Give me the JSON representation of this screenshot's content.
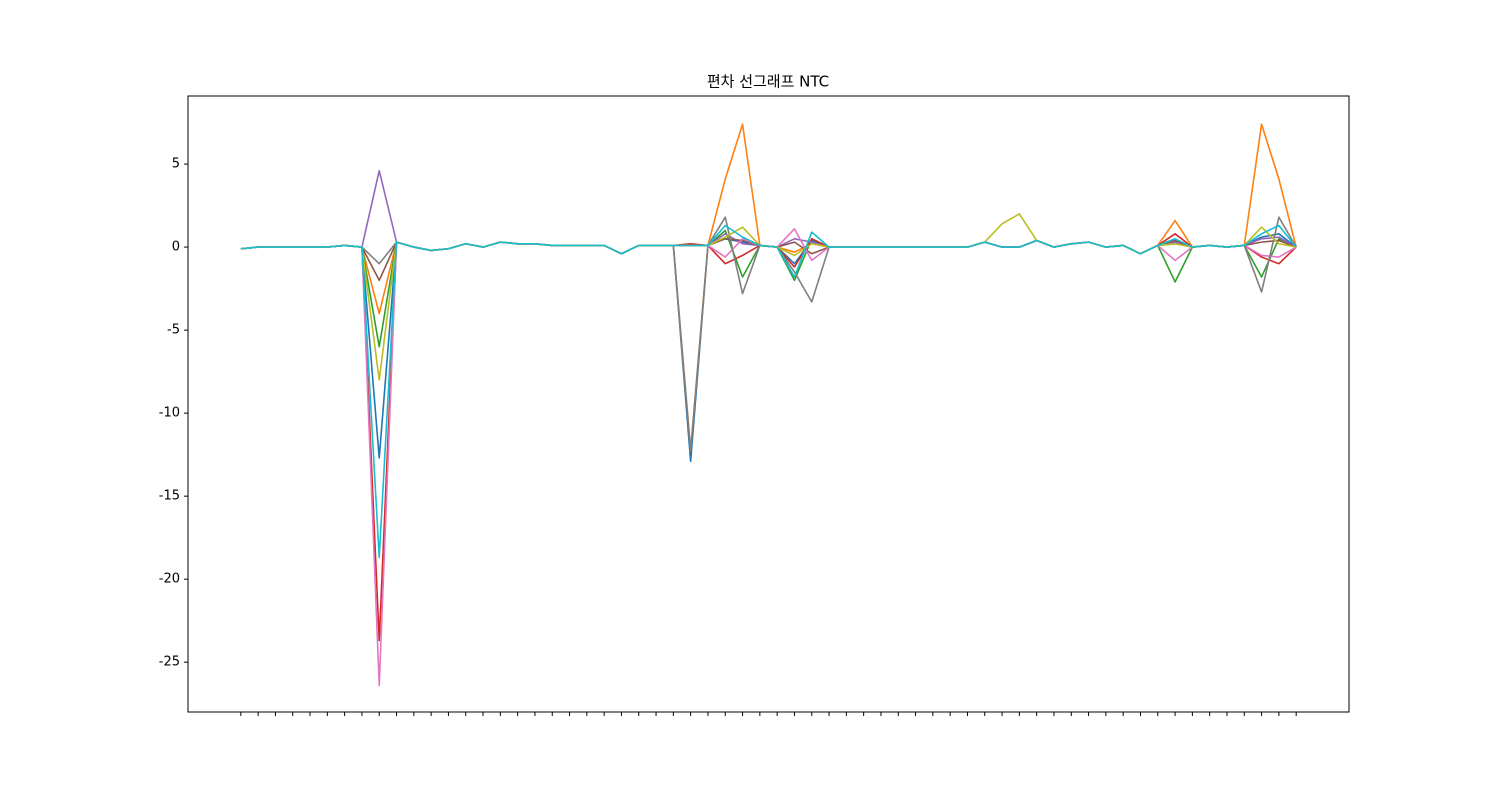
{
  "chart_data": {
    "type": "line",
    "title": "편차 선그래프 NTC",
    "categories": [
      null,
      null,
      null,
      null,
      null,
      null,
      null,
      null,
      null,
      null,
      null,
      null,
      null,
      null,
      null,
      null,
      null,
      null,
      null,
      null,
      null,
      null,
      null,
      null,
      null,
      null,
      null,
      null,
      null,
      null,
      null,
      null,
      null,
      null,
      null,
      null,
      null,
      null,
      null,
      null,
      null,
      null,
      null,
      null,
      null,
      null,
      null,
      null,
      null,
      null,
      null,
      null,
      null,
      null,
      null,
      null,
      null,
      null,
      null,
      null,
      null,
      null
    ],
    "ylim": [
      -28.0,
      9.1
    ],
    "yticks": [
      5,
      0,
      -5,
      -10,
      -15,
      -20,
      -25
    ],
    "series": [
      {
        "color": "#1f77b4",
        "values": [
          -0.1,
          0,
          0,
          0,
          0,
          0,
          0.1,
          0,
          -12.7,
          0.3,
          0,
          -0.2,
          -0.1,
          0.2,
          0,
          0.3,
          0.2,
          0.2,
          0.1,
          0.1,
          0.1,
          0.1,
          -0.4,
          0.1,
          0.1,
          0.1,
          -12.9,
          0.1,
          0.5,
          0.3,
          0.1,
          0,
          -1.0,
          0.4,
          0,
          0,
          0,
          0,
          0,
          0,
          0,
          0,
          0,
          0.3,
          0,
          0,
          0.4,
          0,
          0.2,
          0.3,
          0,
          0.1,
          -0.4,
          0.1,
          0.3,
          0,
          0.1,
          0,
          0.1,
          0.6,
          0.8,
          0
        ]
      },
      {
        "color": "#ff7f0e",
        "values": [
          -0.1,
          0,
          0,
          0,
          0,
          0,
          0.1,
          0,
          -4,
          0.3,
          0,
          -0.2,
          -0.1,
          0.2,
          0,
          0.3,
          0.2,
          0.2,
          0.1,
          0.1,
          0.1,
          0.1,
          -0.4,
          0.1,
          0.1,
          0.1,
          -12.2,
          0.1,
          4.1,
          7.4,
          0.1,
          0,
          -0.3,
          0.2,
          0,
          0,
          0,
          0,
          0,
          0,
          0,
          0,
          0,
          0.3,
          0,
          0,
          0.4,
          0,
          0.2,
          0.3,
          0,
          0.1,
          -0.4,
          0.1,
          1.6,
          0,
          0.1,
          0,
          0.1,
          7.4,
          4.1,
          0
        ]
      },
      {
        "color": "#2ca02c",
        "values": [
          -0.1,
          0,
          0,
          0,
          0,
          0,
          0.1,
          0,
          -6,
          0.3,
          0,
          -0.2,
          -0.1,
          0.2,
          0,
          0.3,
          0.2,
          0.2,
          0.1,
          0.1,
          0.1,
          0.1,
          -0.4,
          0.1,
          0.1,
          0.1,
          0.1,
          0.1,
          1.0,
          -1.8,
          0.1,
          0,
          -2.0,
          0.5,
          0,
          0,
          0,
          0,
          0,
          0,
          0,
          0,
          0,
          0.3,
          0,
          0,
          0.4,
          0,
          0.2,
          0.3,
          0,
          0.1,
          -0.4,
          0.1,
          -2.1,
          0,
          0.1,
          0,
          0.1,
          -1.8,
          0.5,
          0
        ]
      },
      {
        "color": "#d62728",
        "values": [
          -0.1,
          0,
          0,
          0,
          0,
          0,
          0.1,
          0,
          -23.7,
          0.3,
          0,
          -0.2,
          -0.1,
          0.2,
          0,
          0.3,
          0.2,
          0.2,
          0.1,
          0.1,
          0.1,
          0.1,
          -0.4,
          0.1,
          0.1,
          0.1,
          0.2,
          0.1,
          -1.0,
          -0.5,
          0.1,
          0,
          -1.2,
          0.5,
          0,
          0,
          0,
          0,
          0,
          0,
          0,
          0,
          0,
          0.3,
          0,
          0,
          0.4,
          0,
          0.2,
          0.3,
          0,
          0.1,
          -0.4,
          0.1,
          0.8,
          0,
          0.1,
          0,
          0.1,
          -0.6,
          -1.0,
          0
        ]
      },
      {
        "color": "#9467bd",
        "values": [
          -0.1,
          0,
          0,
          0,
          0,
          0,
          0.1,
          0,
          4.6,
          0.3,
          0,
          -0.2,
          -0.1,
          0.2,
          0,
          0.3,
          0.2,
          0.2,
          0.1,
          0.1,
          0.1,
          0.1,
          -0.4,
          0.1,
          0.1,
          0.1,
          0.1,
          0.1,
          0.8,
          0.2,
          0.1,
          0,
          0.5,
          0.3,
          0,
          0,
          0,
          0,
          0,
          0,
          0,
          0,
          0,
          0.3,
          0,
          0,
          0.4,
          0,
          0.2,
          0.3,
          0,
          0.1,
          -0.4,
          0.1,
          0.3,
          0,
          0.1,
          0,
          0.1,
          0.5,
          0.6,
          0
        ]
      },
      {
        "color": "#8c564b",
        "values": [
          -0.1,
          0,
          0,
          0,
          0,
          0,
          0.1,
          0,
          -2,
          0.3,
          0,
          -0.2,
          -0.1,
          0.2,
          0,
          0.3,
          0.2,
          0.2,
          0.1,
          0.1,
          0.1,
          0.1,
          -0.4,
          0.1,
          0.1,
          0.1,
          0.1,
          0.1,
          0.5,
          0.4,
          0.1,
          0,
          0.3,
          -0.4,
          0,
          0,
          0,
          0,
          0,
          0,
          0,
          0,
          0,
          0.3,
          0,
          0,
          0.4,
          0,
          0.2,
          0.3,
          0,
          0.1,
          -0.4,
          0.1,
          0.4,
          0,
          0.1,
          0,
          0.1,
          0.3,
          0.4,
          0
        ]
      },
      {
        "color": "#e377c2",
        "values": [
          -0.1,
          0,
          0,
          0,
          0,
          0,
          0.1,
          0,
          -26.4,
          0.3,
          0,
          -0.2,
          -0.1,
          0.2,
          0,
          0.3,
          0.2,
          0.2,
          0.1,
          0.1,
          0.1,
          0.1,
          -0.4,
          0.1,
          0.1,
          0.1,
          0.1,
          0.1,
          -0.6,
          0.5,
          0.1,
          0,
          1.1,
          -0.8,
          0,
          0,
          0,
          0,
          0,
          0,
          0,
          0,
          0,
          0.3,
          0,
          0,
          0.4,
          0,
          0.2,
          0.3,
          0,
          0.1,
          -0.4,
          0.1,
          -0.8,
          0,
          0.1,
          0,
          0.1,
          -0.5,
          -0.6,
          0
        ]
      },
      {
        "color": "#7f7f7f",
        "values": [
          -0.1,
          0,
          0,
          0,
          0,
          0,
          0.1,
          0,
          -1,
          0.3,
          0,
          -0.2,
          -0.1,
          0.2,
          0,
          0.3,
          0.2,
          0.2,
          0.1,
          0.1,
          0.1,
          0.1,
          -0.4,
          0.1,
          0.1,
          0.1,
          -12.3,
          0.1,
          1.8,
          -2.8,
          0.1,
          0,
          -1.5,
          -3.3,
          0,
          0,
          0,
          0,
          0,
          0,
          0,
          0,
          0,
          0.3,
          0,
          0,
          0.4,
          0,
          0.2,
          0.3,
          0,
          0.1,
          -0.4,
          0.1,
          0.2,
          0,
          0.1,
          0,
          0.1,
          -2.7,
          1.8,
          0
        ]
      },
      {
        "color": "#bcbd22",
        "values": [
          -0.1,
          0,
          0,
          0,
          0,
          0,
          0.1,
          0,
          -8,
          0.3,
          0,
          -0.2,
          -0.1,
          0.2,
          0,
          0.3,
          0.2,
          0.2,
          0.1,
          0.1,
          0.1,
          0.1,
          -0.4,
          0.1,
          0.1,
          0.1,
          0.1,
          0.1,
          0.6,
          1.2,
          0.1,
          0,
          -0.5,
          0.2,
          0,
          0,
          0,
          0,
          0,
          0,
          0,
          0,
          0,
          0.3,
          1.4,
          2.0,
          0.4,
          0,
          0.2,
          0.3,
          0,
          0.1,
          -0.4,
          0.1,
          0.2,
          0,
          0.1,
          0,
          0.1,
          1.2,
          0.2,
          0
        ]
      },
      {
        "color": "#17becf",
        "values": [
          -0.1,
          0,
          0,
          0,
          0,
          0,
          0.1,
          0,
          -18.7,
          0.3,
          0,
          -0.2,
          -0.1,
          0.2,
          0,
          0.3,
          0.2,
          0.2,
          0.1,
          0.1,
          0.1,
          0.1,
          -0.4,
          0.1,
          0.1,
          0.1,
          0.1,
          0.1,
          1.3,
          0.6,
          0.1,
          0,
          -1.8,
          0.9,
          0,
          0,
          0,
          0,
          0,
          0,
          0,
          0,
          0,
          0.3,
          0,
          0,
          0.4,
          0,
          0.2,
          0.3,
          0,
          0.1,
          -0.4,
          0.1,
          0.5,
          0,
          0.1,
          0,
          0.1,
          0.8,
          1.3,
          0
        ]
      }
    ]
  }
}
